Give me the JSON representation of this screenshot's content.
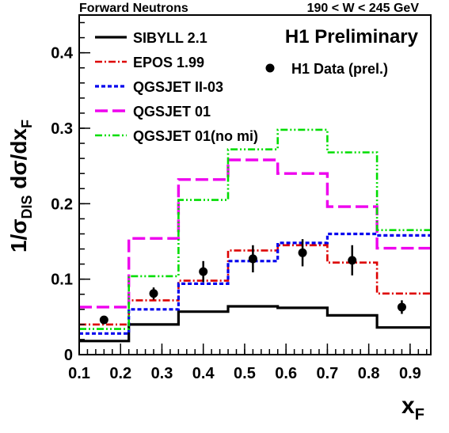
{
  "header": {
    "left": "Forward Neutrons",
    "right": "190 < W < 245 GeV"
  },
  "chart_data": {
    "type": "line",
    "title": "H1 Preliminary",
    "xlabel": "x",
    "xlabel_sub": "F",
    "ylabel_prefix": "1/σ",
    "ylabel_sub1": "DIS",
    "ylabel_mid": " dσ/dx",
    "ylabel_sub2": "F",
    "xlim": [
      0.1,
      0.95
    ],
    "ylim": [
      0,
      0.45
    ],
    "grid": false,
    "legend_placement": "top-left",
    "x_ticks": [
      0.1,
      0.2,
      0.3,
      0.4,
      0.5,
      0.6,
      0.7,
      0.8,
      0.9
    ],
    "x_tick_labels": [
      "0.1",
      "0.2",
      "0.3",
      "0.4",
      "0.5",
      "0.6",
      "0.7",
      "0.8",
      "0.9"
    ],
    "y_ticks": [
      0,
      0.1,
      0.2,
      0.3,
      0.4
    ],
    "y_tick_labels": [
      "0",
      "0.1",
      "0.2",
      "0.3",
      "0.4"
    ],
    "bin_edges": [
      0.1,
      0.22,
      0.34,
      0.46,
      0.58,
      0.7,
      0.82,
      0.95
    ],
    "series": [
      {
        "name": "SIBYLL 2.1",
        "color": "#000000",
        "style": "solid",
        "values": [
          0.018,
          0.04,
          0.057,
          0.064,
          0.062,
          0.052,
          0.036
        ]
      },
      {
        "name": "EPOS 1.99",
        "color": "#dd0000",
        "style": "dashdot",
        "values": [
          0.04,
          0.072,
          0.098,
          0.138,
          0.145,
          0.122,
          0.081
        ]
      },
      {
        "name": "QGSJET II-03",
        "color": "#0000ee",
        "style": "dotted",
        "values": [
          0.028,
          0.06,
          0.094,
          0.124,
          0.148,
          0.16,
          0.158
        ]
      },
      {
        "name": "QGSJET 01",
        "color": "#ee00ee",
        "style": "longdash",
        "values": [
          0.063,
          0.154,
          0.232,
          0.258,
          0.24,
          0.196,
          0.141
        ]
      },
      {
        "name": "QGSJET 01(no mi)",
        "color": "#00dd00",
        "style": "dashdotdot",
        "values": [
          0.034,
          0.104,
          0.205,
          0.272,
          0.298,
          0.268,
          0.165
        ]
      }
    ],
    "data_points": {
      "name": "H1 Data (prel.)",
      "color": "#000000",
      "points": [
        {
          "x": 0.16,
          "y": 0.046,
          "err": 0.003
        },
        {
          "x": 0.28,
          "y": 0.081,
          "err": 0.008
        },
        {
          "x": 0.4,
          "y": 0.11,
          "err": 0.014
        },
        {
          "x": 0.52,
          "y": 0.127,
          "err": 0.018
        },
        {
          "x": 0.64,
          "y": 0.135,
          "err": 0.018
        },
        {
          "x": 0.76,
          "y": 0.125,
          "err": 0.02
        },
        {
          "x": 0.88,
          "y": 0.063,
          "err": 0.009
        }
      ]
    }
  }
}
